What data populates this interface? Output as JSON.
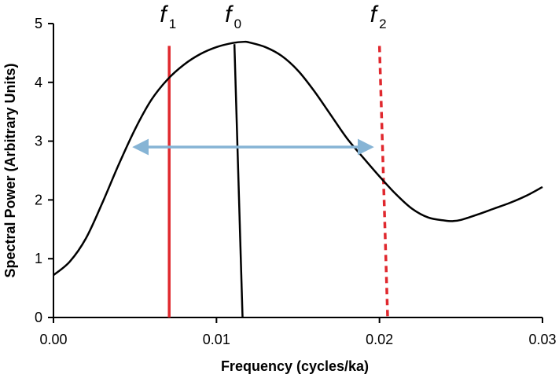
{
  "chart_data": {
    "type": "line",
    "xlabel": "Frequency (cycles/ka)",
    "ylabel": "Spectral Power (Arbitrary Units)",
    "xlim": [
      0,
      0.03
    ],
    "ylim": [
      0,
      5
    ],
    "x_ticks": [
      "0.00",
      "0.01",
      "0.02",
      "0.03"
    ],
    "y_ticks": [
      "0",
      "1",
      "2",
      "3",
      "4",
      "5"
    ],
    "grid": false,
    "series": [
      {
        "color": "#000000",
        "x": [
          0.0,
          0.001,
          0.002,
          0.003,
          0.004,
          0.005,
          0.006,
          0.007,
          0.008,
          0.009,
          0.01,
          0.011,
          0.0117,
          0.012,
          0.013,
          0.014,
          0.015,
          0.016,
          0.017,
          0.018,
          0.019,
          0.02,
          0.021,
          0.022,
          0.023,
          0.024,
          0.0245,
          0.025,
          0.026,
          0.027,
          0.028,
          0.029,
          0.03
        ],
        "y": [
          0.72,
          0.95,
          1.35,
          1.95,
          2.6,
          3.2,
          3.7,
          4.05,
          4.3,
          4.48,
          4.6,
          4.67,
          4.69,
          4.68,
          4.6,
          4.45,
          4.2,
          3.85,
          3.45,
          3.05,
          2.72,
          2.4,
          2.1,
          1.85,
          1.7,
          1.65,
          1.64,
          1.66,
          1.75,
          1.85,
          1.95,
          2.07,
          2.22
        ]
      }
    ],
    "markers": [
      {
        "label": "f",
        "sub": "1",
        "color": "#e0282e",
        "style": "solid",
        "x_top": 0.0071,
        "x_bottom": 0.0071,
        "y_top": 4.62,
        "y_bottom": 0
      },
      {
        "label": "f",
        "sub": "0",
        "color": "#000000",
        "style": "solid",
        "x_top": 0.0111,
        "x_bottom": 0.0116,
        "y_top": 4.65,
        "y_bottom": 0
      },
      {
        "label": "f",
        "sub": "2",
        "color": "#e0282e",
        "style": "dashed",
        "x_top": 0.02,
        "x_bottom": 0.0205,
        "y_top": 4.62,
        "y_bottom": 0
      }
    ],
    "bandwidth_arrow": {
      "x_start": 0.005,
      "x_end": 0.0195,
      "y": 2.9,
      "color": "#86b4d5"
    }
  }
}
